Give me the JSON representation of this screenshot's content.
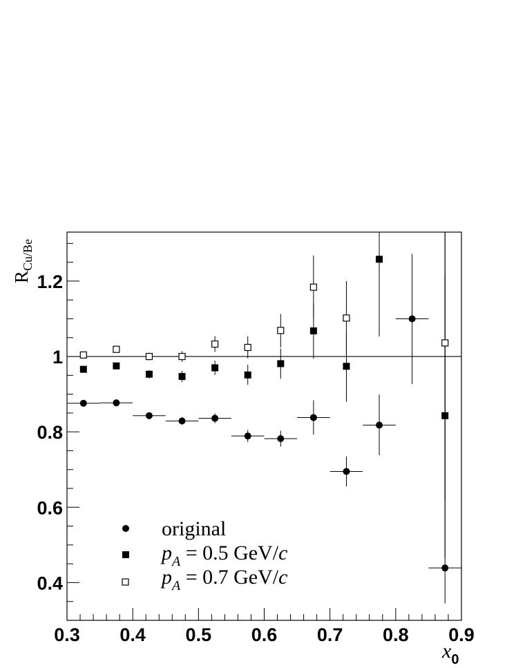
{
  "chart_data": {
    "type": "scatter",
    "title": "",
    "xlabel": "x0",
    "xlabel_main": "x",
    "xlabel_sub": "0",
    "ylabel": "RCu/Be",
    "ylabel_main": "R",
    "ylabel_sub": "Cu/Be",
    "xlim": [
      0.3,
      0.9
    ],
    "ylim": [
      0.3,
      1.33
    ],
    "x_ticks": [
      0.3,
      0.4,
      0.5,
      0.6,
      0.7,
      0.8,
      0.9
    ],
    "x_tick_labels": [
      "0.3",
      "0.4",
      "0.5",
      "0.6",
      "0.7",
      "0.8",
      "0.9"
    ],
    "y_ticks": [
      0.4,
      0.6,
      0.8,
      1.0,
      1.2
    ],
    "y_tick_labels": [
      "0.4",
      "0.6",
      "0.8",
      "1",
      "1.2"
    ],
    "reference_line": 1.0,
    "grid": false,
    "legend_position": "bottom-left",
    "series": [
      {
        "name": "original",
        "legend_label": "original",
        "marker": "filled-circle",
        "points": [
          {
            "x": 0.325,
            "y": 0.876,
            "xlo": 0.3,
            "xhi": 0.35,
            "ylo": 0.87,
            "yhi": 0.882
          },
          {
            "x": 0.375,
            "y": 0.877,
            "xlo": 0.35,
            "xhi": 0.4,
            "ylo": 0.871,
            "yhi": 0.883
          },
          {
            "x": 0.425,
            "y": 0.843,
            "xlo": 0.4,
            "xhi": 0.45,
            "ylo": 0.836,
            "yhi": 0.85
          },
          {
            "x": 0.475,
            "y": 0.829,
            "xlo": 0.45,
            "xhi": 0.5,
            "ylo": 0.819,
            "yhi": 0.839
          },
          {
            "x": 0.525,
            "y": 0.836,
            "xlo": 0.5,
            "xhi": 0.55,
            "ylo": 0.823,
            "yhi": 0.849
          },
          {
            "x": 0.575,
            "y": 0.789,
            "xlo": 0.55,
            "xhi": 0.6,
            "ylo": 0.773,
            "yhi": 0.805
          },
          {
            "x": 0.625,
            "y": 0.782,
            "xlo": 0.6,
            "xhi": 0.65,
            "ylo": 0.761,
            "yhi": 0.803
          },
          {
            "x": 0.675,
            "y": 0.838,
            "xlo": 0.65,
            "xhi": 0.7,
            "ylo": 0.793,
            "yhi": 0.884
          },
          {
            "x": 0.725,
            "y": 0.695,
            "xlo": 0.7,
            "xhi": 0.75,
            "ylo": 0.655,
            "yhi": 0.735
          },
          {
            "x": 0.775,
            "y": 0.818,
            "xlo": 0.75,
            "xhi": 0.8,
            "ylo": 0.738,
            "yhi": 0.899
          },
          {
            "x": 0.825,
            "y": 1.1,
            "xlo": 0.8,
            "xhi": 0.85,
            "ylo": 0.927,
            "yhi": 1.272
          },
          {
            "x": 0.875,
            "y": 0.439,
            "xlo": 0.85,
            "xhi": 0.9,
            "ylo": 0.345,
            "yhi": 1.33
          }
        ]
      },
      {
        "name": "pA = 0.5 GeV/c",
        "legend_prefix": "p",
        "legend_sub": "A",
        "legend_value": " = 0.5 GeV/",
        "legend_unit": "c",
        "marker": "filled-square",
        "points": [
          {
            "x": 0.325,
            "y": 0.966,
            "ylo": 0.958,
            "yhi": 0.973
          },
          {
            "x": 0.375,
            "y": 0.975,
            "ylo": 0.968,
            "yhi": 0.982
          },
          {
            "x": 0.425,
            "y": 0.953,
            "ylo": 0.942,
            "yhi": 0.964
          },
          {
            "x": 0.475,
            "y": 0.947,
            "ylo": 0.932,
            "yhi": 0.962
          },
          {
            "x": 0.525,
            "y": 0.97,
            "ylo": 0.951,
            "yhi": 0.989
          },
          {
            "x": 0.575,
            "y": 0.951,
            "ylo": 0.925,
            "yhi": 0.978
          },
          {
            "x": 0.625,
            "y": 0.981,
            "ylo": 0.941,
            "yhi": 1.021
          },
          {
            "x": 0.675,
            "y": 1.068,
            "ylo": 0.994,
            "yhi": 1.142
          },
          {
            "x": 0.725,
            "y": 0.974,
            "ylo": 0.88,
            "yhi": 1.068
          },
          {
            "x": 0.775,
            "y": 1.258,
            "ylo": 1.053,
            "yhi": 1.33
          },
          {
            "x": 0.875,
            "y": 0.843,
            "ylo": 0.466,
            "yhi": 1.218
          }
        ]
      },
      {
        "name": "pA = 0.7 GeV/c",
        "legend_prefix": "p",
        "legend_sub": "A",
        "legend_value": " = 0.7 GeV/",
        "legend_unit": "c",
        "marker": "open-square",
        "points": [
          {
            "x": 0.325,
            "y": 1.004,
            "ylo": 0.997,
            "yhi": 1.011
          },
          {
            "x": 0.375,
            "y": 1.019,
            "ylo": 1.012,
            "yhi": 1.026
          },
          {
            "x": 0.425,
            "y": 1.0,
            "ylo": 0.99,
            "yhi": 1.01
          },
          {
            "x": 0.475,
            "y": 1.0,
            "ylo": 0.986,
            "yhi": 1.014
          },
          {
            "x": 0.525,
            "y": 1.033,
            "ylo": 1.012,
            "yhi": 1.054
          },
          {
            "x": 0.575,
            "y": 1.024,
            "ylo": 0.995,
            "yhi": 1.053
          },
          {
            "x": 0.625,
            "y": 1.069,
            "ylo": 1.024,
            "yhi": 1.113
          },
          {
            "x": 0.675,
            "y": 1.184,
            "ylo": 1.1,
            "yhi": 1.268
          },
          {
            "x": 0.725,
            "y": 1.102,
            "ylo": 1.005,
            "yhi": 1.2
          },
          {
            "x": 0.875,
            "y": 1.036,
            "ylo": 0.62,
            "yhi": 1.33
          }
        ]
      }
    ]
  }
}
